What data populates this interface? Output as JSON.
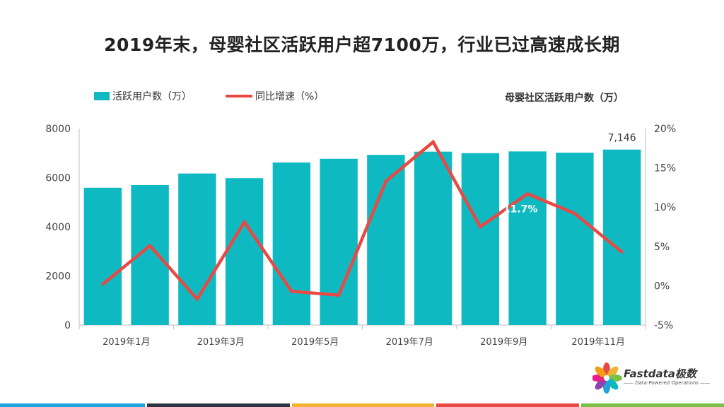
{
  "title": "2019年末，母婴社区活跃用户超7100万，行业已过高速成长期",
  "subtitle": "母婴社区活跃用户数（万）",
  "legend": {
    "bar": "活跃用户数（万）",
    "line": "同比增速（%）"
  },
  "colors": {
    "bar": "#0FB9C1",
    "line": "#E84A43",
    "strip": [
      "#1FA3DA",
      "#2E3540",
      "#F2B233",
      "#E84A43",
      "#7AC043"
    ]
  },
  "brand": {
    "name": "Fastdata极数",
    "tagline": "—— Data-Powered Operations ——"
  },
  "chart_data": {
    "type": "bar",
    "categories": [
      "2019年1月",
      "2019年2月",
      "2019年3月",
      "2019年4月",
      "2019年5月",
      "2019年6月",
      "2019年7月",
      "2019年8月",
      "2019年9月",
      "2019年10月",
      "2019年11月",
      "2019年12月"
    ],
    "x_tick_labels": [
      "2019年1月",
      "",
      "2019年3月",
      "",
      "2019年5月",
      "",
      "2019年7月",
      "",
      "2019年9月",
      "",
      "2019年11月",
      ""
    ],
    "series": [
      {
        "name": "活跃用户数（万）",
        "type": "bar",
        "axis": "left",
        "values": [
          5590,
          5700,
          6170,
          5980,
          6620,
          6770,
          6930,
          7060,
          7000,
          7070,
          7020,
          7146
        ]
      },
      {
        "name": "同比增速（%）",
        "type": "line",
        "axis": "right",
        "values": [
          0.2,
          5.1,
          -1.7,
          8.1,
          -0.7,
          -1.2,
          13.3,
          18.3,
          7.5,
          11.7,
          9.2,
          4.3
        ]
      }
    ],
    "data_labels": [
      {
        "series": 0,
        "index": 11,
        "text": "7,146"
      },
      {
        "series": 1,
        "index": 9,
        "text": "11.7%"
      }
    ],
    "ylim_left": [
      0,
      8000
    ],
    "yticks_left": [
      "0",
      "2000",
      "4000",
      "6000",
      "8000"
    ],
    "ylim_right": [
      -5,
      20
    ],
    "yticks_right": [
      "-5%",
      "0%",
      "5%",
      "10%",
      "15%",
      "20%"
    ],
    "grid": false,
    "legend_position": "top-left"
  }
}
